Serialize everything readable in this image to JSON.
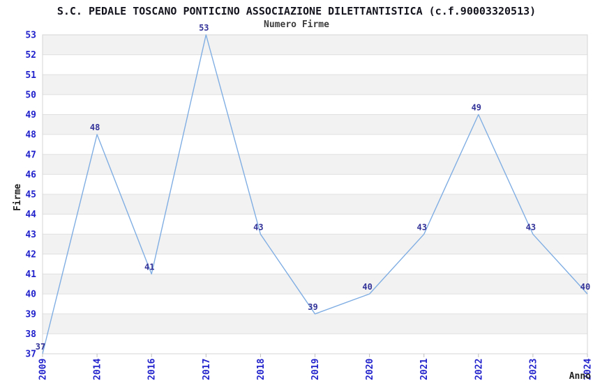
{
  "chart_data": {
    "type": "line",
    "title": "S.C. PEDALE TOSCANO PONTICINO ASSOCIAZIONE DILETTANTISTICA (c.f.90003320513)",
    "subtitle": "Numero Firme",
    "xlabel": "Anno",
    "ylabel": "Firme",
    "categories": [
      "2009",
      "2014",
      "2016",
      "2017",
      "2018",
      "2019",
      "2020",
      "2021",
      "2022",
      "2023",
      "2024"
    ],
    "values": [
      37,
      48,
      41,
      53,
      43,
      39,
      40,
      43,
      49,
      43,
      40
    ],
    "ylim": [
      37,
      53
    ],
    "y_tick_step": 1,
    "grid": true,
    "legend_position": "none",
    "colors": {
      "line": "#80aee3",
      "point_label": "#333399",
      "tick_label": "#2222cc",
      "band": "#f2f2f2",
      "gridline": "#e0e0e0",
      "border": "#d4d4d4",
      "tick_mark": "#c0c0c0",
      "title": "#14141e",
      "subtitle": "#3c3c3c",
      "axis_title": "#222222"
    }
  }
}
